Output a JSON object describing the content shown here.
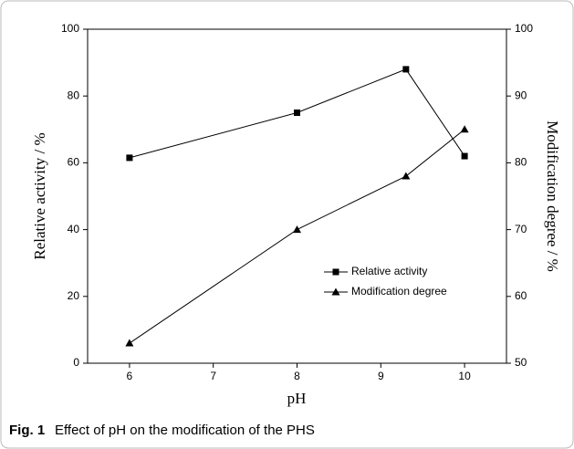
{
  "chart_data": {
    "type": "line",
    "x": [
      6,
      8,
      9.3,
      10
    ],
    "series": [
      {
        "name": "Relative activity",
        "color": "#000000",
        "marker": "square",
        "values": [
          61.5,
          75,
          88,
          62
        ]
      },
      {
        "name": "Modification degree",
        "color": "#000000",
        "marker": "triangle",
        "axis": "y2",
        "values": [
          53,
          70,
          78,
          85
        ]
      }
    ],
    "xlabel": "pH",
    "ylabel": "Relative activity / %",
    "y2label": "Modification degree / %",
    "xlim": [
      5.5,
      10.5
    ],
    "xticks": [
      6,
      7,
      8,
      9,
      10
    ],
    "ylim": [
      0,
      100
    ],
    "yticks": [
      0,
      20,
      40,
      60,
      80,
      100
    ],
    "y2lim": [
      50,
      100
    ],
    "y2ticks": [
      50,
      60,
      70,
      80,
      90,
      100
    ],
    "legend": "lower right"
  },
  "caption": {
    "label": "Fig. 1",
    "text": "Effect of pH on the modification of the PHS"
  }
}
